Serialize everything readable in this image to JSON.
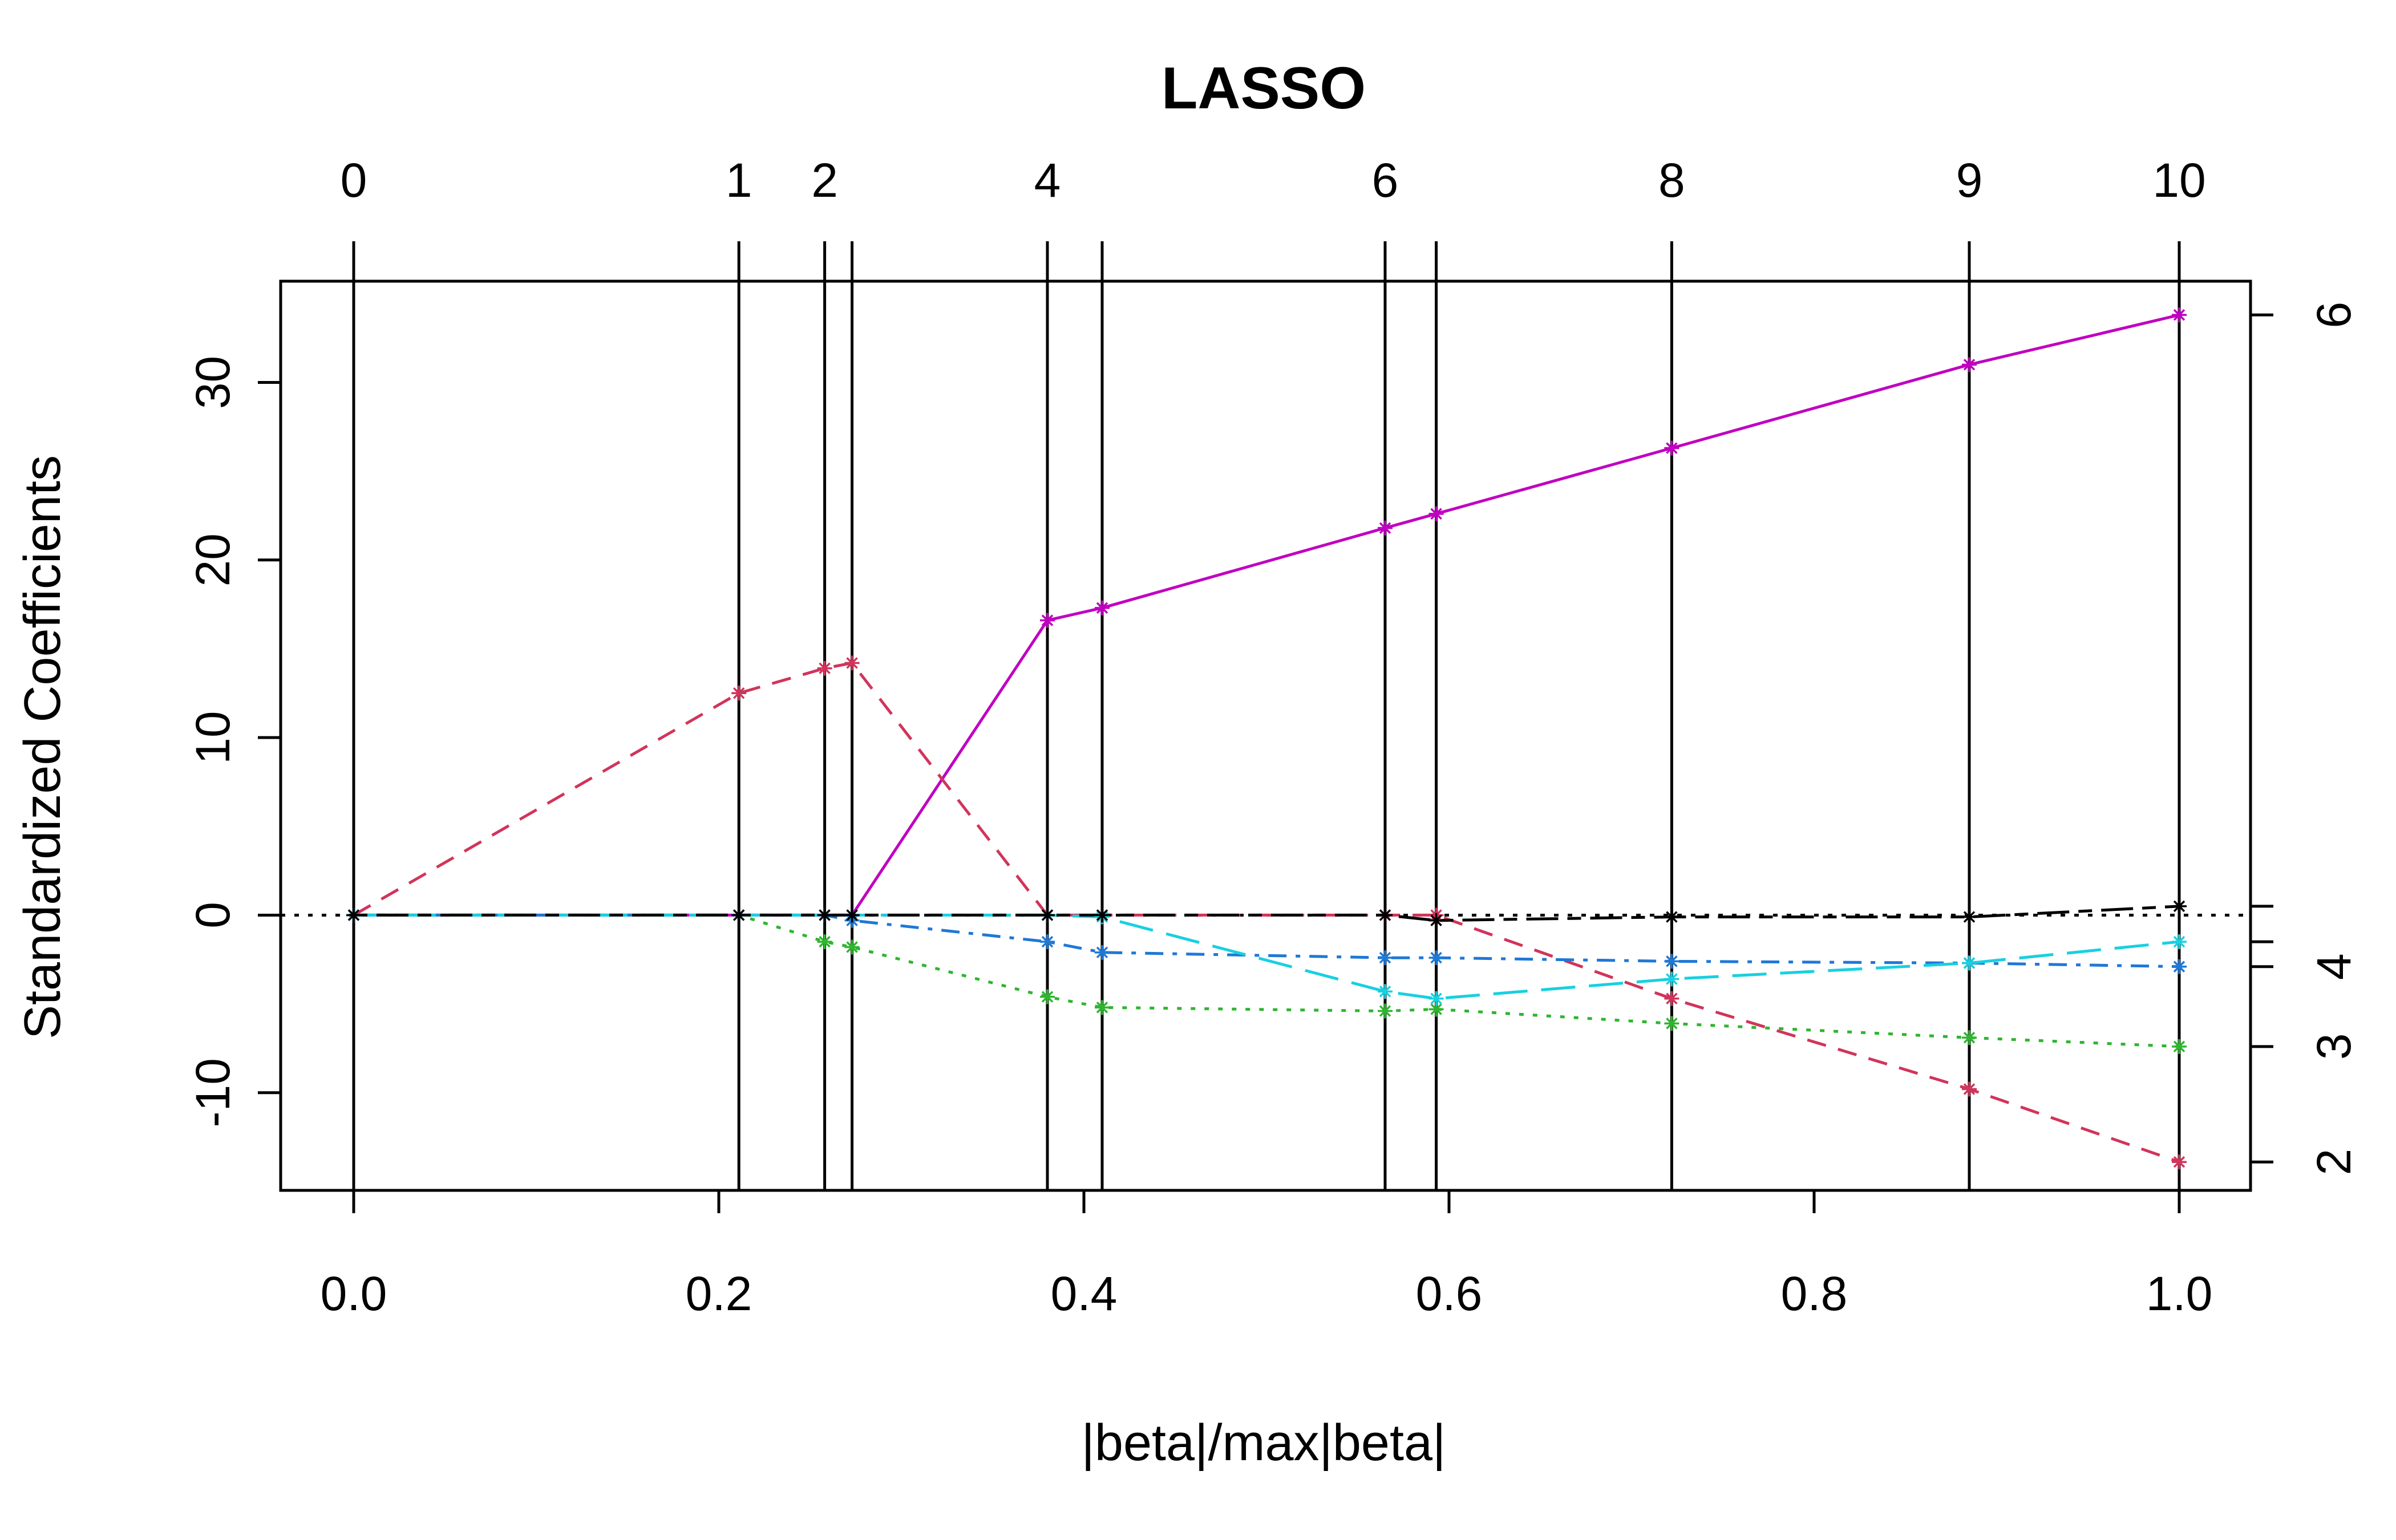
{
  "chart_data": {
    "type": "line",
    "title": "LASSO",
    "xlabel": "|beta|/max|beta|",
    "ylabel": "Standardized Coefficients",
    "xlim": [
      0.0,
      1.0
    ],
    "ylim": [
      -15.5,
      35.7
    ],
    "grid": false,
    "x_ticks": [
      "0.0",
      "0.2",
      "0.4",
      "0.6",
      "0.8",
      "1.0"
    ],
    "y_ticks": [
      "-10",
      "0",
      "10",
      "20",
      "30"
    ],
    "top_ticks": [
      "0",
      "1",
      "2",
      "4",
      "6",
      "8",
      "9",
      "10"
    ],
    "right_ticks": [
      "2",
      "3",
      "4",
      "6"
    ],
    "steps": [
      0.0,
      0.211,
      0.258,
      0.273,
      0.38,
      0.41,
      0.565,
      0.593,
      0.722,
      0.885,
      1.0
    ],
    "step_labels": [
      {
        "x": 0.0,
        "label": "0"
      },
      {
        "x": 0.211,
        "label": "1"
      },
      {
        "x": 0.258,
        "label": "2"
      },
      {
        "x": 0.38,
        "label": "4"
      },
      {
        "x": 0.565,
        "label": "6"
      },
      {
        "x": 0.722,
        "label": "8"
      },
      {
        "x": 0.885,
        "label": "9"
      },
      {
        "x": 1.0,
        "label": "10"
      }
    ],
    "series": [
      {
        "id": "6",
        "color": "#c000c0",
        "dash": "solid",
        "values": [
          0,
          0,
          0,
          0,
          16.6,
          17.3,
          21.8,
          22.6,
          26.3,
          31.0,
          33.8
        ]
      },
      {
        "id": "2",
        "color": "#d1345b",
        "dash": "dashed",
        "values": [
          0,
          12.5,
          13.9,
          14.2,
          0,
          0,
          0,
          0,
          -4.7,
          -9.8,
          -13.9
        ]
      },
      {
        "id": "3",
        "color": "#2fb52f",
        "dash": "dotted",
        "values": [
          0,
          0,
          -1.5,
          -1.8,
          -4.6,
          -5.2,
          -5.4,
          -5.3,
          -6.1,
          -6.9,
          -7.4
        ]
      },
      {
        "id": "4",
        "color": "#1f78d6",
        "dash": "dotdash",
        "values": [
          0,
          0,
          0,
          -0.3,
          -1.5,
          -2.1,
          -2.4,
          -2.4,
          -2.6,
          -2.7,
          -2.9
        ]
      },
      {
        "id": "5",
        "color": "#17d0e0",
        "dash": "longdash",
        "values": [
          0,
          0,
          0,
          0,
          0,
          -0.1,
          -4.3,
          -4.7,
          -3.6,
          -2.7,
          -1.5
        ]
      },
      {
        "id": "1",
        "color": "#000000",
        "dash": "twodash",
        "values": [
          0,
          0,
          0,
          0,
          0,
          0,
          0,
          -0.3,
          -0.1,
          -0.1,
          0.5
        ]
      }
    ]
  }
}
